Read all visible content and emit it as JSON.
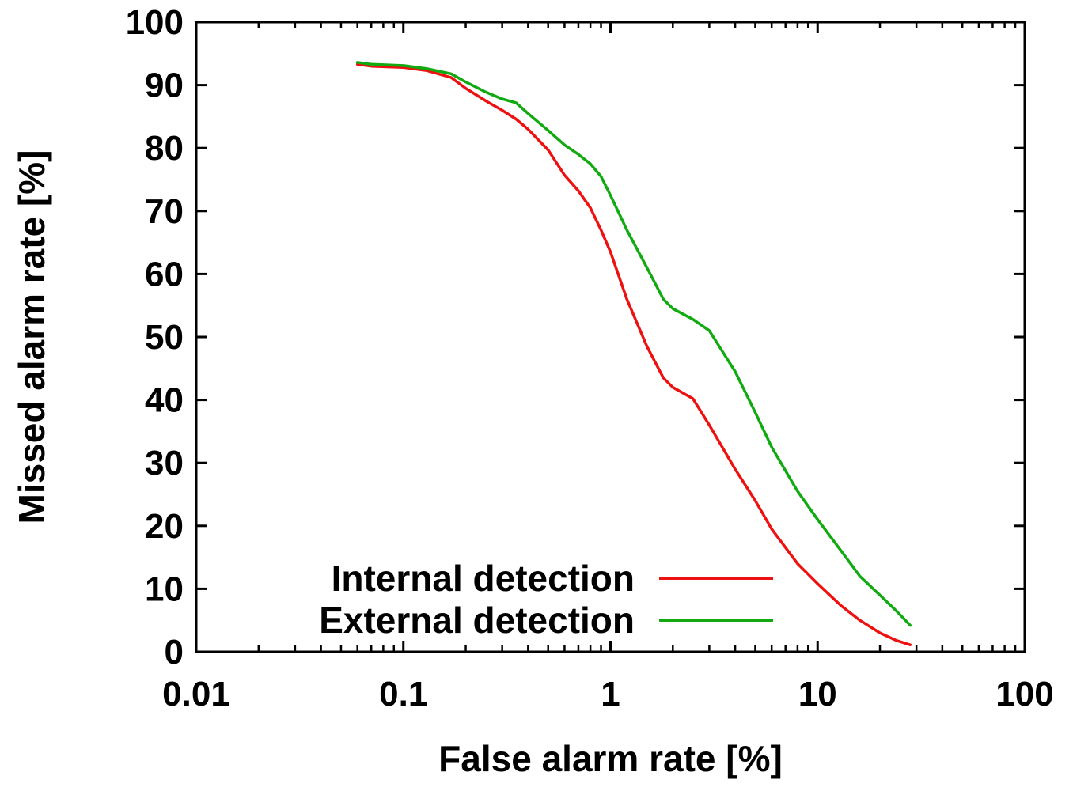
{
  "chart_data": {
    "type": "line",
    "xlabel": "False alarm rate [%]",
    "ylabel": "Missed alarm rate [%]",
    "x_scale": "log",
    "xlim": [
      0.01,
      100
    ],
    "ylim": [
      0,
      100
    ],
    "x_tick_labels": [
      "0.01",
      "0.1",
      "1",
      "10",
      "100"
    ],
    "y_tick_labels": [
      "0",
      "10",
      "20",
      "30",
      "40",
      "50",
      "60",
      "70",
      "80",
      "90",
      "100"
    ],
    "legend_position": "bottom-right",
    "grid": false,
    "series": [
      {
        "name": "Internal detection",
        "color": "#ee1111",
        "x": [
          0.06,
          0.07,
          0.1,
          0.13,
          0.17,
          0.2,
          0.25,
          0.3,
          0.35,
          0.4,
          0.5,
          0.6,
          0.7,
          0.8,
          0.9,
          1.0,
          1.2,
          1.5,
          1.8,
          2.0,
          2.5,
          3.0,
          4.0,
          5.0,
          6.0,
          8.0,
          10.0,
          13.0,
          16.0,
          20.0,
          24.0,
          28.0
        ],
        "y": [
          93.3,
          93.0,
          92.8,
          92.3,
          91.2,
          89.5,
          87.5,
          86.0,
          84.6,
          83.0,
          79.7,
          75.7,
          73.2,
          70.5,
          67.0,
          63.5,
          56.0,
          48.5,
          43.5,
          42.0,
          40.2,
          36.0,
          29.0,
          24.0,
          19.5,
          14.0,
          10.8,
          7.3,
          5.0,
          3.0,
          1.8,
          1.1
        ]
      },
      {
        "name": "External detection",
        "color": "#11aa11",
        "x": [
          0.06,
          0.07,
          0.1,
          0.13,
          0.17,
          0.2,
          0.25,
          0.3,
          0.35,
          0.4,
          0.5,
          0.6,
          0.7,
          0.8,
          0.9,
          1.0,
          1.2,
          1.5,
          1.8,
          2.0,
          2.5,
          3.0,
          4.0,
          5.0,
          6.0,
          8.0,
          10.0,
          13.0,
          16.0,
          20.0,
          24.0,
          28.0
        ],
        "y": [
          93.6,
          93.3,
          93.1,
          92.6,
          91.8,
          90.5,
          88.9,
          87.8,
          87.2,
          85.5,
          82.8,
          80.5,
          79.0,
          77.5,
          75.5,
          72.5,
          67.0,
          61.0,
          56.0,
          54.5,
          52.8,
          51.0,
          44.5,
          38.0,
          32.5,
          25.5,
          21.0,
          16.0,
          12.0,
          9.0,
          6.5,
          4.2
        ]
      }
    ]
  }
}
